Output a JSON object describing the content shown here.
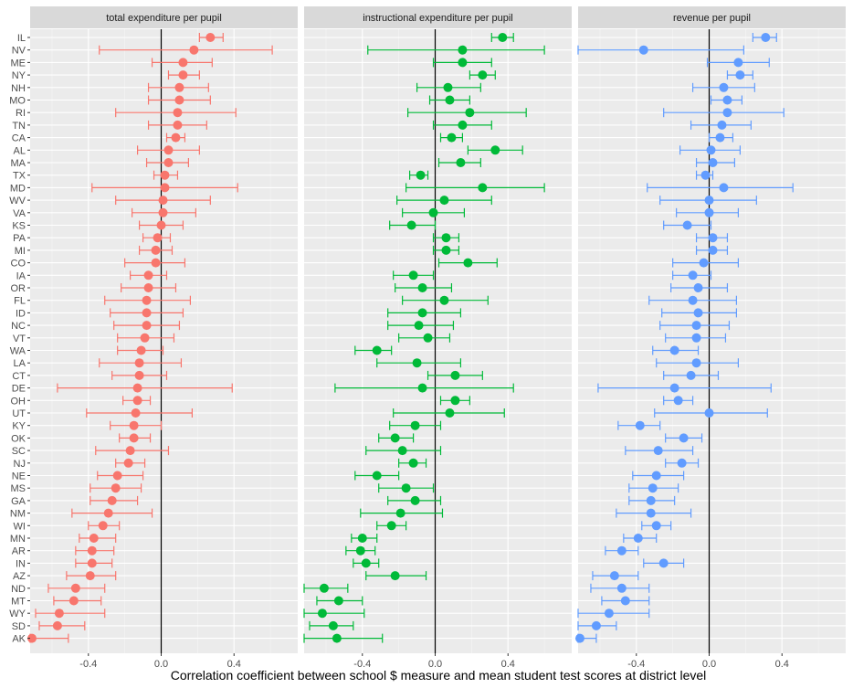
{
  "chart_data": {
    "type": "dot-errorbar-facets",
    "xlabel": "Correlation coefficient between school $ measure and mean student test scores at district level",
    "xlim": [
      -0.72,
      0.75
    ],
    "x_ticks": [
      -0.4,
      0.0,
      0.4
    ],
    "x_tick_labels": [
      "-0.4",
      "0.0",
      "0.4"
    ],
    "reference_line": 0,
    "states": [
      "IL",
      "NV",
      "ME",
      "NY",
      "NH",
      "MO",
      "RI",
      "TN",
      "CA",
      "AL",
      "MA",
      "TX",
      "MD",
      "WV",
      "VA",
      "KS",
      "PA",
      "MI",
      "CO",
      "IA",
      "OR",
      "FL",
      "ID",
      "NC",
      "VT",
      "WA",
      "LA",
      "CT",
      "DE",
      "OH",
      "UT",
      "KY",
      "OK",
      "SC",
      "NJ",
      "NE",
      "MS",
      "GA",
      "NM",
      "WI",
      "MN",
      "AR",
      "IN",
      "AZ",
      "ND",
      "MT",
      "WY",
      "SD",
      "AK"
    ],
    "panels": [
      {
        "title": "total expenditure per pupil",
        "color": "#F8766D",
        "estimates": [
          0.27,
          0.18,
          0.12,
          0.12,
          0.1,
          0.1,
          0.09,
          0.09,
          0.08,
          0.04,
          0.04,
          0.02,
          0.02,
          0.01,
          0.01,
          0.0,
          -0.02,
          -0.03,
          -0.03,
          -0.07,
          -0.07,
          -0.08,
          -0.08,
          -0.08,
          -0.09,
          -0.11,
          -0.12,
          -0.12,
          -0.13,
          -0.13,
          -0.14,
          -0.15,
          -0.15,
          -0.17,
          -0.18,
          -0.24,
          -0.25,
          -0.27,
          -0.29,
          -0.32,
          -0.37,
          -0.38,
          -0.38,
          -0.39,
          -0.47,
          -0.48,
          -0.56,
          -0.57,
          -0.71
        ],
        "lower": [
          0.21,
          -0.34,
          -0.05,
          0.04,
          -0.07,
          -0.07,
          -0.25,
          -0.07,
          0.03,
          -0.13,
          -0.08,
          -0.04,
          -0.38,
          -0.25,
          -0.16,
          -0.12,
          -0.1,
          -0.12,
          -0.2,
          -0.17,
          -0.22,
          -0.31,
          -0.28,
          -0.26,
          -0.24,
          -0.24,
          -0.34,
          -0.27,
          -0.57,
          -0.21,
          -0.41,
          -0.28,
          -0.23,
          -0.36,
          -0.25,
          -0.35,
          -0.39,
          -0.39,
          -0.49,
          -0.4,
          -0.45,
          -0.47,
          -0.47,
          -0.52,
          -0.62,
          -0.59,
          -0.69,
          -0.67,
          -0.75
        ],
        "upper": [
          0.34,
          0.61,
          0.28,
          0.21,
          0.26,
          0.27,
          0.41,
          0.25,
          0.13,
          0.21,
          0.15,
          0.09,
          0.42,
          0.27,
          0.19,
          0.12,
          0.05,
          0.06,
          0.13,
          0.03,
          0.08,
          0.16,
          0.12,
          0.1,
          0.07,
          0.01,
          0.11,
          0.03,
          0.39,
          -0.06,
          0.17,
          0.0,
          -0.06,
          0.04,
          -0.09,
          -0.1,
          -0.11,
          -0.13,
          -0.05,
          -0.23,
          -0.25,
          -0.26,
          -0.27,
          -0.25,
          -0.31,
          -0.33,
          -0.31,
          -0.42,
          -0.51
        ]
      },
      {
        "title": "instructional expenditure per pupil",
        "color": "#00BA38",
        "estimates": [
          0.37,
          0.15,
          0.15,
          0.26,
          0.07,
          0.08,
          0.19,
          0.15,
          0.09,
          0.33,
          0.14,
          -0.08,
          0.26,
          0.05,
          -0.01,
          -0.13,
          0.06,
          0.06,
          0.18,
          -0.12,
          -0.07,
          0.05,
          -0.07,
          -0.09,
          -0.04,
          -0.32,
          -0.1,
          0.11,
          -0.07,
          0.11,
          0.08,
          -0.11,
          -0.22,
          -0.18,
          -0.12,
          -0.32,
          -0.16,
          -0.11,
          -0.19,
          -0.24,
          -0.4,
          -0.41,
          -0.38,
          -0.22,
          -0.61,
          -0.53,
          -0.62,
          -0.56,
          -0.54
        ],
        "lower": [
          0.31,
          -0.37,
          -0.01,
          0.19,
          -0.1,
          -0.03,
          -0.15,
          -0.01,
          0.03,
          0.18,
          0.02,
          -0.14,
          -0.16,
          -0.21,
          -0.18,
          -0.25,
          -0.01,
          -0.01,
          0.02,
          -0.23,
          -0.22,
          -0.18,
          -0.26,
          -0.26,
          -0.2,
          -0.44,
          -0.32,
          -0.04,
          -0.55,
          0.03,
          -0.23,
          -0.25,
          -0.31,
          -0.38,
          -0.2,
          -0.44,
          -0.31,
          -0.26,
          -0.41,
          -0.32,
          -0.46,
          -0.49,
          -0.45,
          -0.38,
          -0.74,
          -0.65,
          -0.77,
          -0.69,
          -0.73
        ],
        "upper": [
          0.43,
          0.6,
          0.31,
          0.33,
          0.25,
          0.19,
          0.5,
          0.31,
          0.15,
          0.48,
          0.25,
          -0.04,
          0.6,
          0.31,
          0.16,
          0.0,
          0.13,
          0.13,
          0.34,
          -0.01,
          0.09,
          0.29,
          0.14,
          0.1,
          0.08,
          -0.24,
          0.14,
          0.26,
          0.43,
          0.19,
          0.38,
          0.03,
          -0.12,
          0.03,
          -0.05,
          -0.2,
          -0.01,
          0.03,
          0.04,
          -0.16,
          -0.32,
          -0.33,
          -0.31,
          -0.05,
          -0.48,
          -0.4,
          -0.39,
          -0.45,
          -0.29
        ]
      },
      {
        "title": "revenue per pupil",
        "color": "#619CFF",
        "estimates": [
          0.31,
          -0.36,
          0.16,
          0.17,
          0.08,
          0.1,
          0.1,
          0.07,
          0.06,
          0.01,
          0.02,
          -0.02,
          0.08,
          0.0,
          0.0,
          -0.12,
          0.02,
          0.02,
          -0.03,
          -0.09,
          -0.06,
          -0.09,
          -0.06,
          -0.07,
          -0.07,
          -0.19,
          -0.07,
          -0.1,
          -0.19,
          -0.17,
          0.0,
          -0.38,
          -0.14,
          -0.28,
          -0.15,
          -0.29,
          -0.31,
          -0.32,
          -0.32,
          -0.29,
          -0.39,
          -0.48,
          -0.25,
          -0.52,
          -0.48,
          -0.46,
          -0.55,
          -0.62,
          -0.71
        ],
        "lower": [
          0.24,
          -0.72,
          -0.01,
          0.1,
          -0.09,
          0.01,
          -0.25,
          -0.1,
          0.0,
          -0.16,
          -0.07,
          -0.07,
          -0.34,
          -0.27,
          -0.18,
          -0.25,
          -0.07,
          -0.07,
          -0.2,
          -0.2,
          -0.21,
          -0.33,
          -0.26,
          -0.27,
          -0.24,
          -0.31,
          -0.29,
          -0.25,
          -0.61,
          -0.25,
          -0.3,
          -0.5,
          -0.24,
          -0.46,
          -0.24,
          -0.42,
          -0.44,
          -0.44,
          -0.51,
          -0.37,
          -0.47,
          -0.57,
          -0.36,
          -0.64,
          -0.65,
          -0.59,
          -0.72,
          -0.72,
          -0.8
        ],
        "upper": [
          0.37,
          0.19,
          0.33,
          0.24,
          0.25,
          0.18,
          0.41,
          0.23,
          0.13,
          0.17,
          0.14,
          0.02,
          0.46,
          0.26,
          0.16,
          0.01,
          0.1,
          0.1,
          0.16,
          0.01,
          0.1,
          0.15,
          0.15,
          0.11,
          0.09,
          -0.06,
          0.16,
          0.05,
          0.34,
          -0.09,
          0.32,
          -0.27,
          -0.04,
          -0.09,
          -0.06,
          -0.14,
          -0.17,
          -0.19,
          -0.1,
          -0.21,
          -0.29,
          -0.39,
          -0.14,
          -0.39,
          -0.33,
          -0.33,
          -0.33,
          -0.51,
          -0.62
        ]
      }
    ]
  }
}
